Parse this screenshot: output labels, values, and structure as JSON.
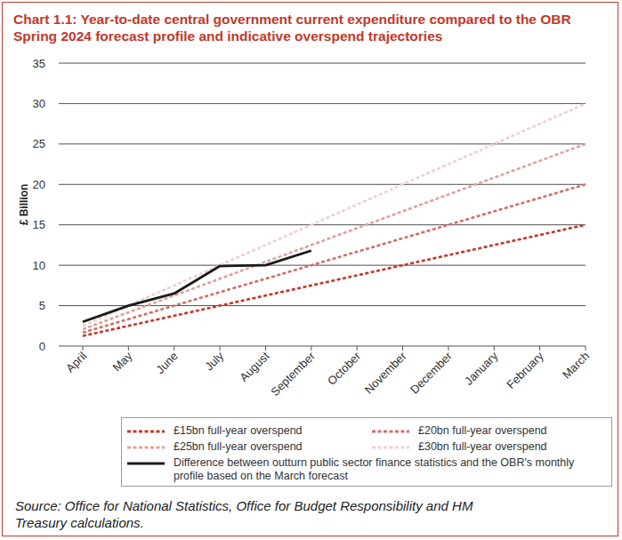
{
  "chart_data": {
    "type": "line",
    "title": "Chart 1.1: Year-to-date central government current expenditure compared to the OBR Spring 2024 forecast profile and indicative overspend trajectories",
    "y_label": "£ Billion",
    "source": "Source: Office for National Statistics, Office for Budget Responsibility and HM Treasury calculations.",
    "categories": [
      "April",
      "May",
      "June",
      "July",
      "August",
      "September",
      "October",
      "November",
      "December",
      "January",
      "February",
      "March"
    ],
    "ylim": [
      0,
      35
    ],
    "yticks": [
      0,
      5,
      10,
      15,
      20,
      25,
      30,
      35
    ],
    "grid": true,
    "series": [
      {
        "name": "£15bn full-year overspend",
        "color": "#c0392b",
        "line_style": "dashed",
        "values": [
          1.25,
          2.5,
          3.75,
          5,
          6.25,
          7.5,
          8.75,
          10,
          11.25,
          12.5,
          13.75,
          15
        ]
      },
      {
        "name": "£20bn full-year overspend",
        "color": "#d07068",
        "line_style": "dashed",
        "values": [
          1.67,
          3.33,
          5,
          6.67,
          8.33,
          10,
          11.67,
          13.33,
          15,
          16.67,
          18.33,
          20
        ]
      },
      {
        "name": "£25bn full-year overspend",
        "color": "#dea29c",
        "line_style": "dashed",
        "values": [
          2.08,
          4.17,
          6.25,
          8.33,
          10.42,
          12.5,
          14.58,
          16.67,
          18.75,
          20.83,
          22.92,
          25
        ]
      },
      {
        "name": "£30bn full-year overspend",
        "color": "#efd0cc",
        "line_style": "dashed",
        "values": [
          2.5,
          5,
          7.5,
          10,
          12.5,
          15,
          17.5,
          20,
          22.5,
          25,
          27.5,
          30
        ]
      },
      {
        "name": "Difference between outturn public sector finance statistics and the OBR's monthly profile based on the March forecast",
        "color": "#1a1a1a",
        "line_style": "solid",
        "values": [
          3.0,
          5.0,
          6.5,
          9.9,
          10.0,
          11.8,
          null,
          null,
          null,
          null,
          null,
          null
        ]
      }
    ]
  }
}
